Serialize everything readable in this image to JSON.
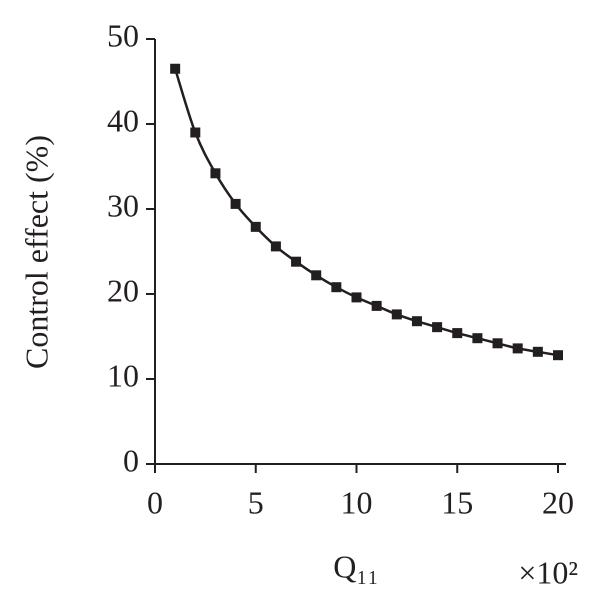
{
  "chart_data": {
    "type": "line",
    "y_label": "Control effect (%)",
    "x_label": "Q₁₁",
    "x_multiplier": "×10²",
    "x": [
      1,
      2,
      3,
      4,
      5,
      6,
      7,
      8,
      9,
      10,
      11,
      12,
      13,
      14,
      15,
      16,
      17,
      18,
      19,
      20
    ],
    "series": [
      {
        "color": "#231f20",
        "marker": "square",
        "values": [
          46.5,
          39.0,
          34.2,
          30.6,
          27.9,
          25.6,
          23.8,
          22.2,
          20.8,
          19.6,
          18.6,
          17.6,
          16.8,
          16.1,
          15.4,
          14.8,
          14.2,
          13.6,
          13.2,
          12.8
        ]
      }
    ],
    "xlim": [
      0,
      20
    ],
    "xticks": [
      0,
      5,
      10,
      15,
      20
    ],
    "ylim": [
      0,
      50
    ],
    "yticks": [
      0,
      10,
      20,
      30,
      40,
      50
    ]
  }
}
